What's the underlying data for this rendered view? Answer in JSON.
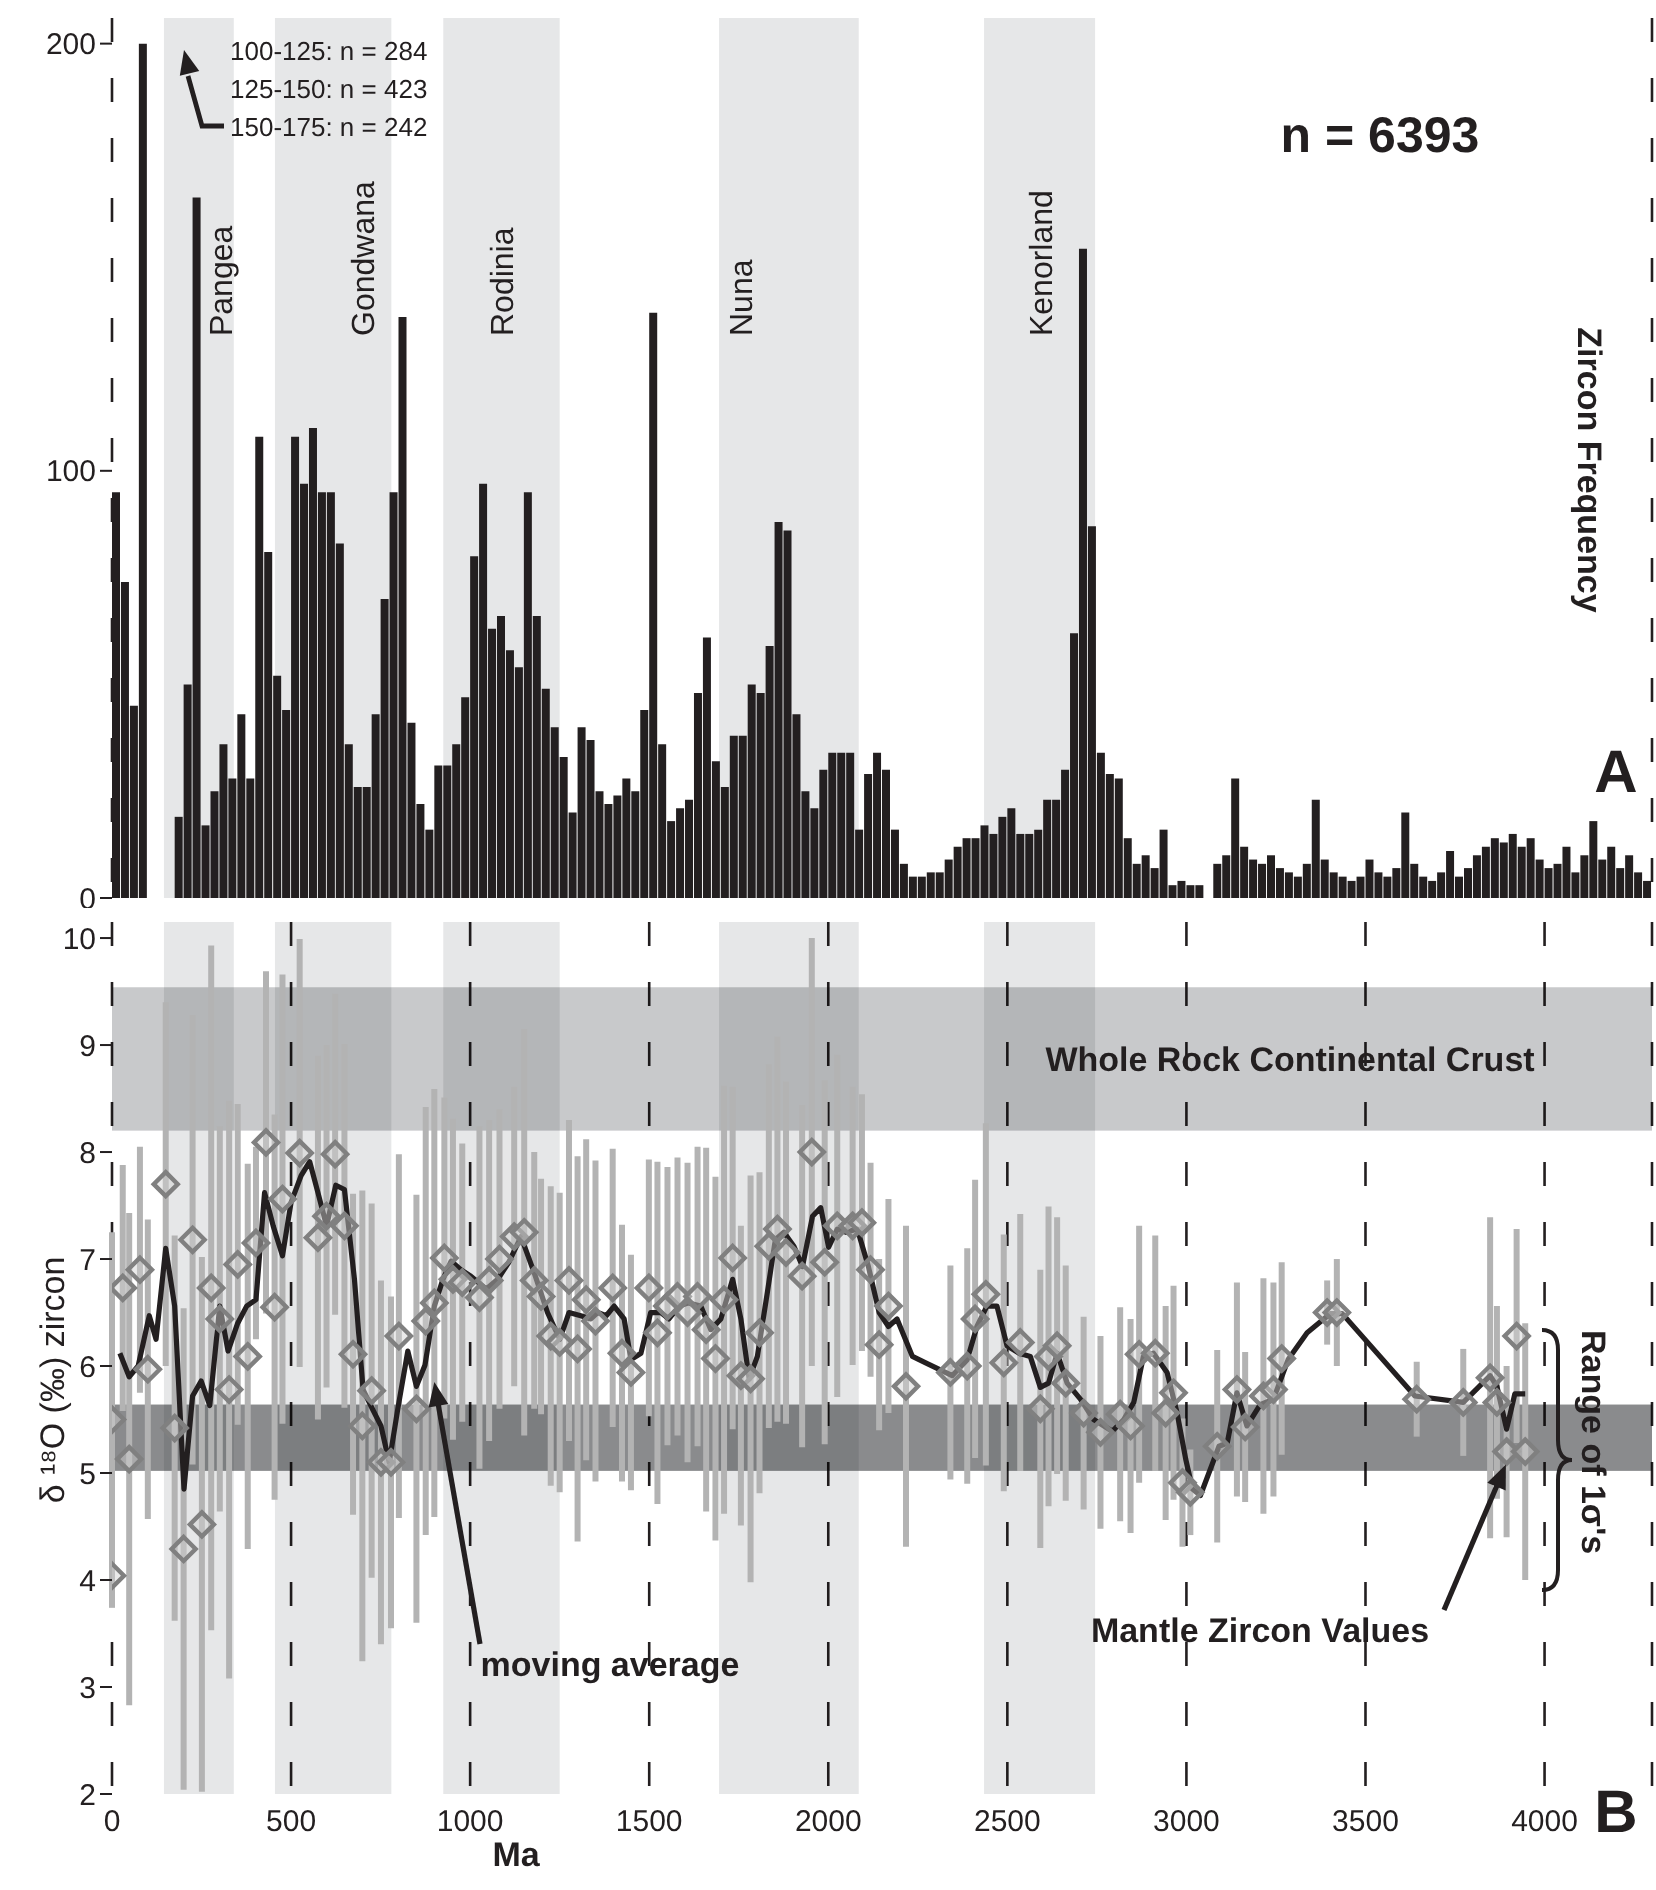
{
  "chart_data": [
    {
      "type": "histogram",
      "ylabel": "Zircon Frequency",
      "color": "#231f20",
      "bins": [
        0,
        25,
        50,
        75,
        100,
        125,
        150,
        175,
        200,
        225,
        250,
        275,
        300,
        325,
        350,
        375,
        400,
        425,
        450,
        475,
        500,
        525,
        550,
        575,
        600,
        625,
        650,
        675,
        700,
        725,
        750,
        775,
        800,
        825,
        850,
        875,
        900,
        925,
        950,
        975,
        1000,
        1025,
        1050,
        1075,
        1100,
        1125,
        1150,
        1175,
        1200,
        1225,
        1250,
        1275,
        1300,
        1325,
        1350,
        1375,
        1400,
        1425,
        1450,
        1475,
        1500,
        1525,
        1550,
        1575,
        1600,
        1625,
        1650,
        1675,
        1700,
        1725,
        1750,
        1775,
        1800,
        1825,
        1850,
        1875,
        1900,
        1925,
        1950,
        1975,
        2000,
        2025,
        2050,
        2075,
        2100,
        2125,
        2150,
        2175,
        2200,
        2225,
        2250,
        2275,
        2300,
        2325,
        2350,
        2375,
        2400,
        2425,
        2450,
        2475,
        2500,
        2525,
        2550,
        2575,
        2600,
        2625,
        2650,
        2675,
        2700,
        2725,
        2750,
        2775,
        2800,
        2825,
        2850,
        2875,
        2900,
        2925,
        2950,
        2975,
        3000,
        3025,
        3050,
        3075,
        3100,
        3125,
        3150,
        3175,
        3200,
        3225,
        3250,
        3275,
        3300,
        3325,
        3350,
        3375,
        3400,
        3425,
        3450,
        3475,
        3500,
        3525,
        3550,
        3575,
        3600,
        3625,
        3650,
        3675,
        3700,
        3725,
        3750,
        3775,
        3800,
        3825,
        3850,
        3875,
        3900,
        3925,
        3950,
        3975,
        4000,
        4025,
        4050,
        4075,
        4100,
        4125,
        4150,
        4175,
        4200,
        4225,
        4250,
        4275,
        4300
      ],
      "values": [
        95,
        74,
        45,
        200,
        null,
        null,
        null,
        19,
        50,
        164,
        17,
        25,
        36,
        28,
        43,
        28,
        108,
        81,
        52,
        44,
        108,
        97,
        110,
        95,
        95,
        83,
        36,
        26,
        26,
        43,
        70,
        95,
        136,
        41,
        22,
        16,
        31,
        31,
        36,
        47,
        80,
        97,
        63,
        66,
        58,
        54,
        95,
        66,
        49,
        40,
        33,
        20,
        40,
        37,
        25,
        22,
        24,
        28,
        25,
        44,
        137,
        36,
        18,
        21,
        23,
        48,
        61,
        32,
        26,
        38,
        38,
        50,
        48,
        59,
        88,
        86,
        43,
        25,
        21,
        30,
        34,
        34,
        34,
        16,
        29,
        34,
        30,
        16,
        8,
        5,
        5,
        6,
        6,
        9,
        12,
        14,
        14,
        17,
        15,
        19,
        21,
        15,
        15,
        16,
        23,
        23,
        30,
        62,
        152,
        87,
        34,
        29,
        28,
        14,
        8,
        10,
        7,
        16,
        3,
        4,
        3,
        3,
        0,
        8,
        10,
        28,
        12,
        9,
        8,
        10,
        7,
        6,
        5,
        8,
        23,
        9,
        6,
        5,
        4,
        5,
        9,
        6,
        5,
        7,
        20,
        8,
        5,
        4,
        6,
        11,
        5,
        7,
        10,
        12,
        14,
        13,
        15,
        12,
        14,
        9,
        7,
        8,
        12,
        6,
        10,
        18,
        9,
        12,
        7,
        10,
        6,
        4
      ],
      "xlim": [
        0,
        4300
      ],
      "xticks": [
        0,
        500,
        1000,
        1500,
        2000,
        2500,
        3000,
        3500,
        4000
      ],
      "ylim": [
        0,
        206
      ],
      "yticks": [
        0,
        100,
        200
      ],
      "tick_labels": "y",
      "grid": "x",
      "bands": [
        {
          "axis": "x",
          "from": 145,
          "to": 340,
          "label": "Pangea",
          "color": "#e6e7e8"
        },
        {
          "axis": "x",
          "from": 455,
          "to": 780,
          "label": "Gondwana",
          "color": "#e6e7e8"
        },
        {
          "axis": "x",
          "from": 925,
          "to": 1250,
          "label": "Rodinia",
          "color": "#e6e7e8"
        },
        {
          "axis": "x",
          "from": 1695,
          "to": 2085,
          "label": "Nuna",
          "color": "#e6e7e8"
        },
        {
          "axis": "x",
          "from": 2435,
          "to": 2745,
          "label": "Kenorland",
          "color": "#e6e7e8"
        }
      ],
      "annotations": [
        "100-125: n = 284",
        "125-150: n = 423",
        "150-175: n = 242",
        "n = 6393",
        "A"
      ]
    },
    {
      "type": "scatter",
      "xlabel": "Ma",
      "ylabel": "δ ¹⁸O (‰) zircon",
      "xlim": [
        0,
        4300
      ],
      "xticks": [
        0,
        500,
        1000,
        1500,
        2000,
        2500,
        3000,
        3500,
        4000
      ],
      "ylim": [
        2,
        10.15
      ],
      "yticks": [
        2,
        3,
        4,
        5,
        6,
        7,
        8,
        9,
        10
      ],
      "grid": "x",
      "bands": [
        {
          "axis": "x",
          "from": 145,
          "to": 340,
          "color": "#e6e7e8"
        },
        {
          "axis": "x",
          "from": 455,
          "to": 780,
          "color": "#e6e7e8"
        },
        {
          "axis": "x",
          "from": 925,
          "to": 1250,
          "color": "#e6e7e8"
        },
        {
          "axis": "x",
          "from": 1695,
          "to": 2085,
          "color": "#e6e7e8"
        },
        {
          "axis": "x",
          "from": 2435,
          "to": 2745,
          "color": "#e6e7e8"
        },
        {
          "axis": "y",
          "from": 8.2,
          "to": 9.54,
          "label": "Whole Rock Continental Crust",
          "color": "#c8c9cb"
        },
        {
          "axis": "y",
          "from": 5.02,
          "to": 5.64,
          "color": "#8a8b8d"
        }
      ],
      "series": [
        {
          "type": "scatter",
          "color": "#808080",
          "marker": "diamond",
          "x": [
            0,
            0,
            30,
            48,
            78,
            100,
            150,
            175,
            200,
            225,
            251,
            277,
            301,
            327,
            351,
            379,
            402,
            430,
            454,
            476,
            524,
            575,
            599,
            623,
            649,
            673,
            699,
            725,
            751,
            779,
            801,
            850,
            876,
            900,
            928,
            952,
            978,
            1026,
            1053,
            1082,
            1123,
            1151,
            1179,
            1198,
            1225,
            1250,
            1276,
            1300,
            1324,
            1350,
            1398,
            1424,
            1449,
            1499,
            1523,
            1551,
            1579,
            1607,
            1635,
            1659,
            1685,
            1709,
            1733,
            1756,
            1783,
            1808,
            1834,
            1858,
            1882,
            1927,
            1954,
            1990,
            2025,
            2068,
            2094,
            2118,
            2142,
            2168,
            2217,
            2341,
            2388,
            2410,
            2440,
            2490,
            2536,
            2592,
            2615,
            2639,
            2663,
            2713,
            2760,
            2815,
            2844,
            2868,
            2913,
            2942,
            2964,
            2989,
            3011,
            3086,
            3141,
            3164,
            3215,
            3243,
            3266,
            3393,
            3420,
            3643,
            3773,
            3848,
            3867,
            3894,
            3922,
            3946
          ],
          "values": [
            4.04,
            5.5,
            6.73,
            5.13,
            6.9,
            5.97,
            7.7,
            5.42,
            4.29,
            7.18,
            4.52,
            6.73,
            6.44,
            5.78,
            6.95,
            6.09,
            7.15,
            8.09,
            6.55,
            7.56,
            7.99,
            7.2,
            7.4,
            7.98,
            7.31,
            6.11,
            5.44,
            5.77,
            5.1,
            5.1,
            6.28,
            5.6,
            6.42,
            6.59,
            7.01,
            6.81,
            6.78,
            6.64,
            6.8,
            7.0,
            7.21,
            7.25,
            6.8,
            6.65,
            6.28,
            6.22,
            6.8,
            6.16,
            6.62,
            6.42,
            6.73,
            6.12,
            5.94,
            6.73,
            6.31,
            6.56,
            6.65,
            6.5,
            6.65,
            6.34,
            6.07,
            6.62,
            7.01,
            5.91,
            5.88,
            6.31,
            7.12,
            7.28,
            7.06,
            6.84,
            8.0,
            6.97,
            7.31,
            7.31,
            7.34,
            6.9,
            6.2,
            6.56,
            5.81,
            5.94,
            6.0,
            6.44,
            6.67,
            6.03,
            6.22,
            5.6,
            6.09,
            6.19,
            5.84,
            5.56,
            5.38,
            5.55,
            5.44,
            6.11,
            6.12,
            5.56,
            5.75,
            4.91,
            4.82,
            5.25,
            5.78,
            5.43,
            5.72,
            5.78,
            6.07,
            6.5,
            6.5,
            5.69,
            5.66,
            5.89,
            5.66,
            5.2,
            6.28,
            5.2
          ],
          "errors": [
            0.3,
            1.75,
            1.15,
            2.3,
            1.15,
            1.4,
            1.7,
            1.8,
            2.25,
            2.1,
            2.5,
            3.2,
            1.8,
            2.7,
            1.5,
            1.8,
            0.9,
            1.6,
            1.8,
            2.1,
            2.0,
            1.7,
            1.6,
            1.5,
            1.7,
            1.5,
            2.2,
            1.75,
            1.7,
            1.55,
            1.7,
            2.0,
            2.0,
            2.0,
            1.5,
            1.5,
            1.3,
            1.6,
            1.5,
            1.4,
            1.4,
            1.9,
            1.2,
            1.1,
            1.4,
            1.4,
            1.5,
            1.8,
            1.5,
            1.5,
            1.3,
            1.2,
            1.1,
            1.2,
            1.6,
            1.3,
            1.3,
            1.4,
            1.4,
            1.7,
            1.7,
            2.0,
            1.6,
            1.4,
            1.9,
            1.5,
            1.7,
            1.8,
            1.6,
            1.6,
            2.0,
            1.7,
            1.6,
            1.3,
            1.2,
            1.0,
            0.8,
            1.0,
            1.5,
            1.0,
            1.1,
            1.3,
            1.6,
            1.2,
            1.2,
            1.3,
            1.4,
            1.2,
            1.1,
            0.9,
            0.9,
            1.0,
            1.0,
            1.2,
            1.1,
            1.0,
            1.0,
            0.6,
            0.4,
            0.9,
            1.0,
            0.7,
            1.1,
            1.0,
            0.9,
            0.3,
            0.5,
            0.35,
            0.5,
            1.5,
            0.9,
            0.8,
            1.0,
            1.2
          ]
        },
        {
          "type": "line",
          "color": "#231f20",
          "marker": "none",
          "x": [
            22,
            48,
            73,
            104,
            123,
            150,
            175,
            201,
            225,
            249,
            273,
            301,
            324,
            351,
            376,
            402,
            426,
            450,
            476,
            500,
            528,
            552,
            575,
            599,
            625,
            649,
            677,
            701,
            727,
            751,
            774,
            798,
            826,
            850,
            874,
            900,
            924,
            947,
            974,
            1002,
            1045,
            1077,
            1108,
            1142,
            1179,
            1216,
            1250,
            1276,
            1309,
            1337,
            1356,
            1380,
            1402,
            1430,
            1449,
            1477,
            1504,
            1532,
            1555,
            1584,
            1610,
            1644,
            1672,
            1700,
            1733,
            1756,
            1779,
            1802,
            1830,
            1852,
            1876,
            1904,
            1928,
            1956,
            1979,
            2001,
            2025,
            2050,
            2081,
            2112,
            2142,
            2168,
            2192,
            2235,
            2272,
            2346,
            2388,
            2415,
            2443,
            2471,
            2499,
            2533,
            2564,
            2592,
            2615,
            2639,
            2667,
            2704,
            2741,
            2793,
            2825,
            2853,
            2880,
            2908,
            2946,
            2974,
            2998,
            3017,
            3039,
            3091,
            3114,
            3141,
            3169,
            3206,
            3243,
            3284,
            3337,
            3402,
            3435,
            3638,
            3773,
            3848,
            3867,
            3894,
            3917,
            3946
          ],
          "values": [
            6.12,
            5.9,
            6.0,
            6.47,
            6.25,
            7.1,
            6.56,
            4.85,
            5.72,
            5.86,
            5.63,
            6.56,
            6.14,
            6.4,
            6.56,
            6.62,
            7.62,
            7.31,
            7.03,
            7.53,
            7.78,
            7.91,
            7.62,
            7.31,
            7.69,
            7.65,
            6.81,
            5.78,
            5.6,
            5.44,
            5.1,
            5.6,
            6.14,
            5.81,
            6.01,
            6.56,
            6.81,
            6.98,
            6.9,
            6.84,
            6.72,
            6.81,
            6.97,
            7.21,
            6.87,
            6.5,
            6.25,
            6.5,
            6.47,
            6.44,
            6.5,
            6.47,
            6.56,
            6.44,
            6.06,
            6.12,
            6.5,
            6.5,
            6.44,
            6.56,
            6.59,
            6.56,
            6.34,
            6.44,
            6.81,
            6.44,
            5.88,
            6.09,
            6.69,
            7.18,
            7.25,
            7.12,
            6.93,
            7.4,
            7.48,
            7.11,
            7.28,
            7.25,
            7.28,
            6.93,
            6.5,
            6.37,
            6.44,
            6.09,
            6.03,
            5.91,
            6.06,
            6.37,
            6.56,
            6.56,
            6.19,
            6.12,
            6.09,
            5.8,
            5.84,
            6.12,
            5.84,
            5.69,
            5.5,
            5.39,
            5.5,
            5.66,
            6.09,
            6.12,
            5.94,
            5.56,
            5.13,
            4.85,
            4.79,
            5.25,
            5.28,
            5.75,
            5.44,
            5.64,
            5.69,
            6.06,
            6.31,
            6.49,
            6.49,
            5.72,
            5.66,
            5.91,
            5.81,
            5.41,
            5.74,
            5.74
          ]
        }
      ],
      "annotations": [
        {
          "text": "moving average",
          "x": 900,
          "y": 5.85
        },
        {
          "text": "Mantle Zircon Values",
          "x": 3892,
          "y": 5.08
        },
        "Range of 1σ's",
        "B"
      ]
    }
  ]
}
